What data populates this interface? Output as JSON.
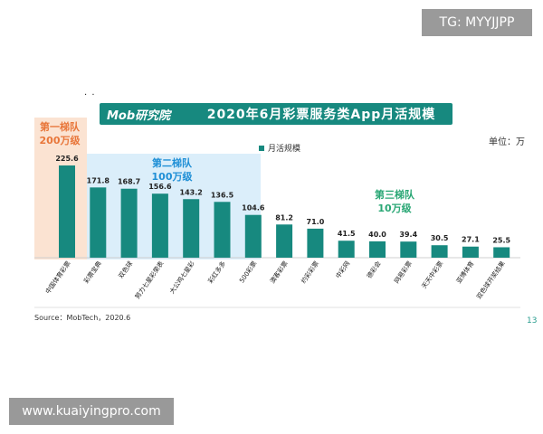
{
  "watermarks": {
    "top": "TG: MYYJJPP",
    "bottom": "www.kuaiyingpro.com"
  },
  "header": {
    "logo": "Mob研究院",
    "title": "2020年6月彩票服务类App月活规模"
  },
  "unit_label": "单位：万",
  "legend_label": "月活规模",
  "tiers": [
    {
      "name": "第一梯队",
      "scale": "200万级"
    },
    {
      "name": "第二梯队",
      "scale": "100万级"
    },
    {
      "name": "第三梯队",
      "scale": "10万级"
    }
  ],
  "colors": {
    "bar": "#17897f",
    "tier1_bg": "#fbe3d2",
    "tier1_text": "#e8763a",
    "tier2_bg": "#dbeefa",
    "tier2_text": "#1f8fd6",
    "tier3_text": "#2aa775",
    "banner": "#17897f"
  },
  "source": "Source：MobTech，2020.6",
  "page_number": "13",
  "chart_data": {
    "type": "bar",
    "title": "2020年6月彩票服务类App月活规模",
    "categories": [
      "中国体育彩票",
      "彩票宝典",
      "双色球",
      "努力七星彩荣表",
      "大公鸡七星彩",
      "彩红多多",
      "500彩票",
      "澳客彩票",
      "约彩彩票",
      "中彩网",
      "德彩会",
      "网易彩票",
      "天天中彩票",
      "亚博体育",
      "双色球开奖结果"
    ],
    "series": [
      {
        "name": "月活规模",
        "values": [
          225.6,
          171.8,
          168.7,
          156.6,
          143.2,
          136.5,
          104.6,
          81.2,
          71.0,
          41.5,
          40.0,
          39.4,
          30.5,
          27.1,
          25.5
        ]
      }
    ],
    "value_labels": [
      "225.6",
      "171.8",
      "168.7",
      "156.6",
      "143.2",
      "136.5",
      "104.6",
      "81.2",
      "71.0",
      "41.5",
      "40.0",
      "39.4",
      "30.5",
      "27.1",
      "25.5"
    ],
    "ylim": [
      0,
      230
    ],
    "grid": false,
    "legend_position": "top"
  }
}
